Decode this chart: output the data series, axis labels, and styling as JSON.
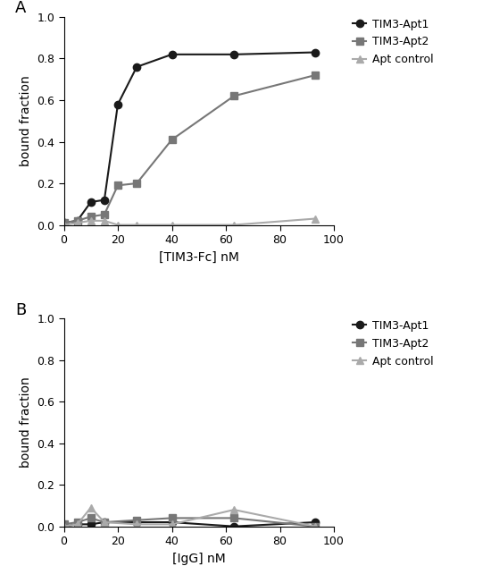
{
  "panel_A": {
    "xlabel": "[TIM3-Fc] nM",
    "ylabel": "bound fraction",
    "xlim": [
      0,
      100
    ],
    "ylim": [
      0.0,
      1.0
    ],
    "xticks": [
      0,
      20,
      40,
      60,
      80,
      100
    ],
    "yticks": [
      0.0,
      0.2,
      0.4,
      0.6,
      0.8,
      1.0
    ],
    "series": [
      {
        "label": "TIM3-Apt1",
        "color": "#1a1a1a",
        "marker": "o",
        "markersize": 6,
        "linewidth": 1.5,
        "x": [
          0,
          5,
          10,
          15,
          20,
          27,
          40,
          63,
          93
        ],
        "y": [
          0.01,
          0.02,
          0.11,
          0.12,
          0.58,
          0.76,
          0.82,
          0.82,
          0.83
        ]
      },
      {
        "label": "TIM3-Apt2",
        "color": "#777777",
        "marker": "s",
        "markersize": 6,
        "linewidth": 1.5,
        "x": [
          0,
          5,
          10,
          15,
          20,
          27,
          40,
          63,
          93
        ],
        "y": [
          0.01,
          0.02,
          0.04,
          0.05,
          0.19,
          0.2,
          0.41,
          0.62,
          0.72
        ]
      },
      {
        "label": "Apt control",
        "color": "#aaaaaa",
        "marker": "^",
        "markersize": 6,
        "linewidth": 1.5,
        "x": [
          0,
          5,
          10,
          15,
          20,
          27,
          40,
          63,
          93
        ],
        "y": [
          0.0,
          0.01,
          0.02,
          0.02,
          0.0,
          0.0,
          0.0,
          0.0,
          0.03
        ]
      }
    ]
  },
  "panel_B": {
    "xlabel": "[IgG] nM",
    "ylabel": "bound fraction",
    "xlim": [
      0,
      100
    ],
    "ylim": [
      0.0,
      1.0
    ],
    "xticks": [
      0,
      20,
      40,
      60,
      80,
      100
    ],
    "yticks": [
      0.0,
      0.2,
      0.4,
      0.6,
      0.8,
      1.0
    ],
    "series": [
      {
        "label": "TIM3-Apt1",
        "color": "#1a1a1a",
        "marker": "o",
        "markersize": 6,
        "linewidth": 1.5,
        "x": [
          0,
          5,
          10,
          15,
          27,
          40,
          63,
          93
        ],
        "y": [
          0.0,
          0.01,
          0.01,
          0.02,
          0.02,
          0.02,
          0.0,
          0.02
        ]
      },
      {
        "label": "TIM3-Apt2",
        "color": "#777777",
        "marker": "s",
        "markersize": 6,
        "linewidth": 1.5,
        "x": [
          0,
          5,
          10,
          15,
          27,
          40,
          63,
          93
        ],
        "y": [
          0.01,
          0.02,
          0.04,
          0.02,
          0.03,
          0.04,
          0.04,
          0.0
        ]
      },
      {
        "label": "Apt control",
        "color": "#aaaaaa",
        "marker": "^",
        "markersize": 6,
        "linewidth": 1.5,
        "x": [
          0,
          5,
          10,
          15,
          27,
          40,
          63,
          93
        ],
        "y": [
          0.0,
          0.01,
          0.09,
          0.02,
          0.01,
          0.01,
          0.08,
          0.0
        ]
      }
    ]
  },
  "legend_fontsize": 9,
  "axis_fontsize": 10,
  "tick_fontsize": 9,
  "panel_label_fontsize": 13,
  "background_color": "#ffffff"
}
